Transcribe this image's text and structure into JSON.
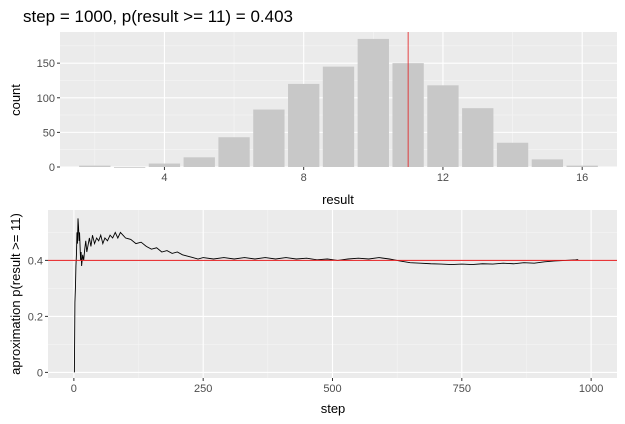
{
  "colors": {
    "panel_bg": "#ebebeb",
    "grid_major": "#ffffff",
    "bar_fill": "#c8c8c8",
    "ref_line": "#e41a1c",
    "series_line": "#000000"
  },
  "chart_data": [
    {
      "type": "bar",
      "title": "step = 1000, p(result >= 11) = 0.403",
      "xlabel": "result",
      "ylabel": "count",
      "xlim": [
        1,
        17
      ],
      "ylim": [
        0,
        195
      ],
      "xticks": [
        4,
        8,
        12,
        16
      ],
      "yticks": [
        0,
        50,
        100,
        150
      ],
      "x": [
        2,
        3,
        4,
        5,
        6,
        7,
        8,
        9,
        10,
        11,
        12,
        13,
        14,
        15,
        16
      ],
      "values": [
        2,
        0,
        5,
        14,
        43,
        83,
        120,
        145,
        185,
        150,
        118,
        85,
        35,
        11,
        2
      ],
      "vline_x": 11,
      "grid": true,
      "legend": "none"
    },
    {
      "type": "line",
      "title": "",
      "xlabel": "step",
      "ylabel": "aproximation p(result >= 11)",
      "xlim": [
        -50,
        1050
      ],
      "ylim": [
        -0.02,
        0.58
      ],
      "xticks": [
        0,
        250,
        500,
        750,
        1000
      ],
      "yticks": [
        0.0,
        0.2,
        0.4
      ],
      "hline_y": 0.4,
      "points": [
        [
          1,
          0.0
        ],
        [
          2,
          0.25
        ],
        [
          3,
          0.3
        ],
        [
          4,
          0.38
        ],
        [
          5,
          0.42
        ],
        [
          6,
          0.5
        ],
        [
          7,
          0.46
        ],
        [
          8,
          0.55
        ],
        [
          9,
          0.52
        ],
        [
          10,
          0.47
        ],
        [
          11,
          0.5
        ],
        [
          12,
          0.45
        ],
        [
          13,
          0.4
        ],
        [
          14,
          0.43
        ],
        [
          15,
          0.38
        ],
        [
          17,
          0.42
        ],
        [
          19,
          0.4
        ],
        [
          21,
          0.44
        ],
        [
          23,
          0.47
        ],
        [
          25,
          0.43
        ],
        [
          27,
          0.45
        ],
        [
          30,
          0.48
        ],
        [
          33,
          0.45
        ],
        [
          36,
          0.49
        ],
        [
          40,
          0.46
        ],
        [
          44,
          0.48
        ],
        [
          48,
          0.47
        ],
        [
          52,
          0.49
        ],
        [
          56,
          0.46
        ],
        [
          60,
          0.48
        ],
        [
          65,
          0.47
        ],
        [
          70,
          0.49
        ],
        [
          75,
          0.48
        ],
        [
          80,
          0.5
        ],
        [
          85,
          0.48
        ],
        [
          90,
          0.5
        ],
        [
          95,
          0.49
        ],
        [
          100,
          0.48
        ],
        [
          110,
          0.475
        ],
        [
          120,
          0.46
        ],
        [
          130,
          0.465
        ],
        [
          140,
          0.45
        ],
        [
          150,
          0.44
        ],
        [
          160,
          0.445
        ],
        [
          170,
          0.43
        ],
        [
          180,
          0.435
        ],
        [
          190,
          0.425
        ],
        [
          200,
          0.43
        ],
        [
          210,
          0.42
        ],
        [
          220,
          0.415
        ],
        [
          230,
          0.41
        ],
        [
          240,
          0.405
        ],
        [
          250,
          0.41
        ],
        [
          270,
          0.405
        ],
        [
          290,
          0.41
        ],
        [
          310,
          0.405
        ],
        [
          330,
          0.41
        ],
        [
          350,
          0.405
        ],
        [
          370,
          0.41
        ],
        [
          390,
          0.405
        ],
        [
          410,
          0.41
        ],
        [
          430,
          0.405
        ],
        [
          450,
          0.408
        ],
        [
          470,
          0.402
        ],
        [
          490,
          0.405
        ],
        [
          510,
          0.4
        ],
        [
          530,
          0.405
        ],
        [
          550,
          0.408
        ],
        [
          570,
          0.405
        ],
        [
          590,
          0.41
        ],
        [
          610,
          0.405
        ],
        [
          630,
          0.398
        ],
        [
          650,
          0.392
        ],
        [
          670,
          0.39
        ],
        [
          690,
          0.388
        ],
        [
          710,
          0.387
        ],
        [
          730,
          0.385
        ],
        [
          750,
          0.387
        ],
        [
          770,
          0.385
        ],
        [
          790,
          0.388
        ],
        [
          810,
          0.387
        ],
        [
          830,
          0.39
        ],
        [
          850,
          0.388
        ],
        [
          870,
          0.392
        ],
        [
          890,
          0.39
        ],
        [
          910,
          0.395
        ],
        [
          930,
          0.398
        ],
        [
          950,
          0.4
        ],
        [
          970,
          0.402
        ],
        [
          975,
          0.403
        ]
      ],
      "grid": true,
      "legend": "none"
    }
  ]
}
